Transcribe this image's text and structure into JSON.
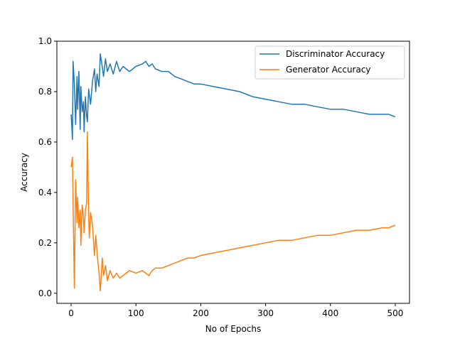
{
  "chart_data": {
    "type": "line",
    "xlabel": "No of Epochs",
    "ylabel": "Accuracy",
    "xlim": [
      -22,
      522
    ],
    "ylim": [
      -0.04,
      1.0
    ],
    "xticks": [
      0,
      100,
      200,
      300,
      400,
      500
    ],
    "yticks": [
      0.0,
      0.2,
      0.4,
      0.6,
      0.8,
      1.0
    ],
    "xtick_labels": [
      "0",
      "100",
      "200",
      "300",
      "400",
      "500"
    ],
    "ytick_labels": [
      "0.0",
      "0.2",
      "0.4",
      "0.6",
      "0.8",
      "1.0"
    ],
    "grid": false,
    "legend_position": "top-right",
    "series": [
      {
        "name": "Discriminator Accuracy",
        "color": "#1f77b4",
        "x": [
          0,
          2,
          3,
          5,
          7,
          9,
          10,
          12,
          14,
          15,
          17,
          19,
          20,
          22,
          24,
          25,
          27,
          30,
          33,
          36,
          38,
          40,
          43,
          45,
          48,
          50,
          53,
          56,
          60,
          65,
          70,
          75,
          80,
          90,
          100,
          110,
          115,
          120,
          125,
          130,
          140,
          150,
          160,
          170,
          180,
          190,
          200,
          220,
          240,
          260,
          280,
          300,
          320,
          340,
          360,
          380,
          400,
          420,
          440,
          460,
          480,
          490,
          500
        ],
        "y": [
          0.71,
          0.61,
          0.92,
          0.83,
          0.67,
          0.86,
          0.73,
          0.88,
          0.65,
          0.82,
          0.72,
          0.76,
          0.64,
          0.78,
          0.7,
          0.68,
          0.81,
          0.75,
          0.84,
          0.89,
          0.8,
          0.87,
          0.82,
          0.95,
          0.9,
          0.86,
          0.93,
          0.88,
          0.91,
          0.87,
          0.92,
          0.88,
          0.9,
          0.88,
          0.9,
          0.91,
          0.92,
          0.9,
          0.91,
          0.89,
          0.88,
          0.88,
          0.86,
          0.85,
          0.84,
          0.83,
          0.83,
          0.82,
          0.81,
          0.8,
          0.78,
          0.77,
          0.76,
          0.75,
          0.75,
          0.74,
          0.73,
          0.73,
          0.72,
          0.71,
          0.71,
          0.71,
          0.7
        ]
      },
      {
        "name": "Generator Accuracy",
        "color": "#ff7f0e",
        "x": [
          0,
          2,
          3,
          5,
          7,
          9,
          10,
          12,
          14,
          15,
          17,
          19,
          20,
          22,
          24,
          25,
          27,
          28,
          30,
          33,
          36,
          38,
          40,
          43,
          45,
          48,
          50,
          53,
          56,
          60,
          65,
          70,
          75,
          80,
          90,
          100,
          110,
          115,
          120,
          125,
          130,
          140,
          150,
          160,
          170,
          180,
          190,
          200,
          220,
          240,
          260,
          280,
          300,
          320,
          340,
          360,
          380,
          400,
          420,
          440,
          460,
          480,
          490,
          500
        ],
        "y": [
          0.5,
          0.54,
          0.36,
          0.02,
          0.45,
          0.28,
          0.38,
          0.26,
          0.33,
          0.19,
          0.35,
          0.3,
          0.24,
          0.33,
          0.36,
          0.64,
          0.3,
          0.22,
          0.32,
          0.27,
          0.15,
          0.23,
          0.16,
          0.08,
          0.01,
          0.14,
          0.07,
          0.11,
          0.05,
          0.09,
          0.06,
          0.08,
          0.06,
          0.07,
          0.09,
          0.08,
          0.09,
          0.08,
          0.07,
          0.09,
          0.1,
          0.1,
          0.11,
          0.12,
          0.13,
          0.14,
          0.14,
          0.15,
          0.16,
          0.17,
          0.18,
          0.19,
          0.2,
          0.21,
          0.21,
          0.22,
          0.23,
          0.23,
          0.24,
          0.25,
          0.25,
          0.26,
          0.26,
          0.27
        ]
      }
    ]
  }
}
